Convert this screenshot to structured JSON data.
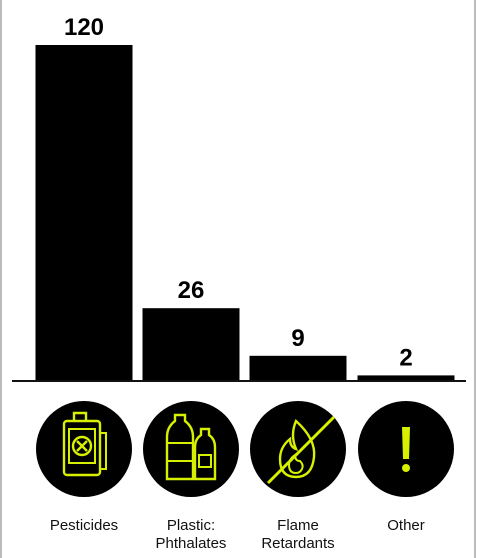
{
  "chart_data": {
    "type": "bar",
    "categories": [
      "Pesticides",
      "Plastic: Phthalates",
      "Flame Retardants",
      "Other"
    ],
    "category_lines": [
      [
        "Pesticides"
      ],
      [
        "Plastic:",
        "Phthalates"
      ],
      [
        "Flame",
        "Retardants"
      ],
      [
        "Other"
      ]
    ],
    "values": [
      120,
      26,
      9,
      2
    ],
    "data_labels": [
      "120",
      "26",
      "9",
      "2"
    ],
    "title": "",
    "xlabel": "",
    "ylabel": "",
    "ylim": [
      0,
      120
    ],
    "grid": false,
    "legend": "none",
    "bar_color": "#000000",
    "icons": [
      "pesticide-canister-icon",
      "plastic-bottles-icon",
      "no-flame-icon",
      "exclamation-icon"
    ]
  },
  "colors": {
    "bar": "#000000",
    "icon_circle": "#000000",
    "icon_accent": "#d7f000",
    "text": "#111111"
  }
}
